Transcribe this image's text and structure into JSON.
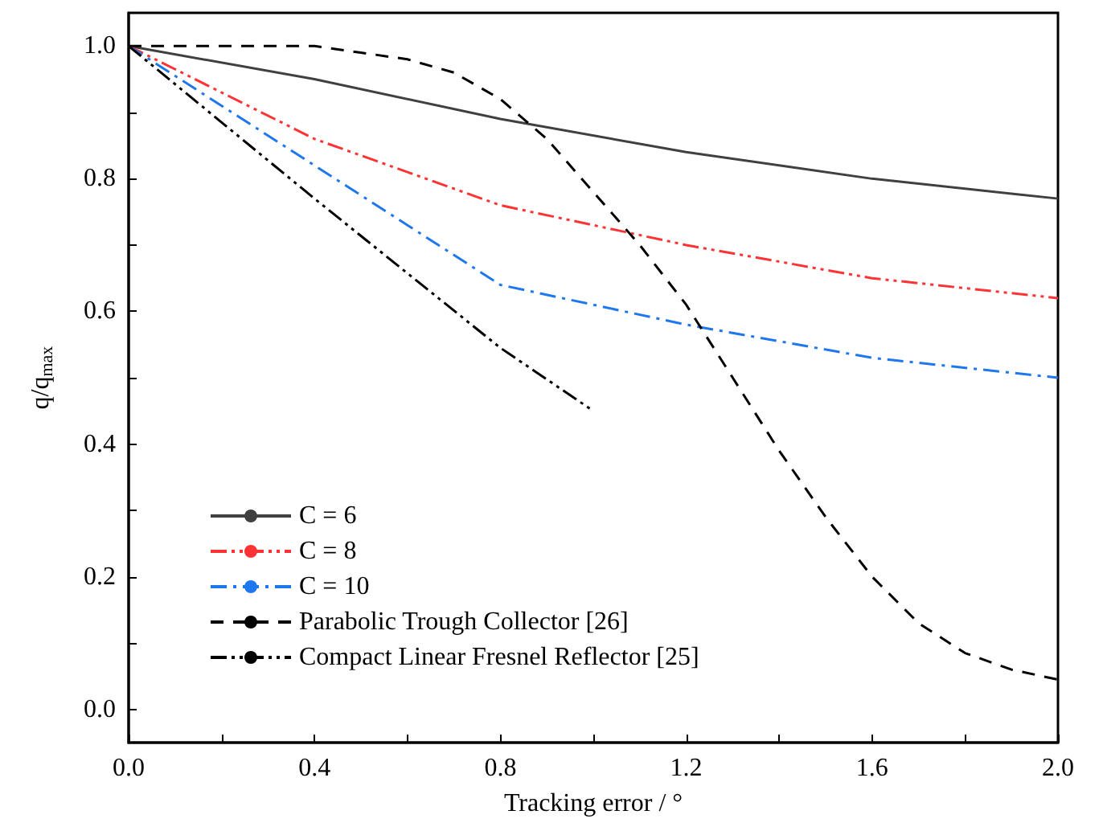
{
  "chart_data": {
    "type": "line",
    "xlabel": "Tracking error / °",
    "ylabel": "q/q$_{max}$",
    "xlim": [
      0,
      2.0
    ],
    "ylim": [
      -0.05,
      1.05
    ],
    "xticks": [
      {
        "value": 0,
        "label": "0.0"
      },
      {
        "value": 0.2,
        "label": null
      },
      {
        "value": 0.4,
        "label": "0.4"
      },
      {
        "value": 0.6,
        "label": null
      },
      {
        "value": 0.8,
        "label": "0.8"
      },
      {
        "value": 1.0,
        "label": null
      },
      {
        "value": 1.2,
        "label": "1.2"
      },
      {
        "value": 1.4,
        "label": null
      },
      {
        "value": 1.6,
        "label": "1.6"
      },
      {
        "value": 1.8,
        "label": null
      },
      {
        "value": 2.0,
        "label": "2.0"
      }
    ],
    "yticks": [
      {
        "value": 0,
        "label": "0.0"
      },
      {
        "value": 0.1,
        "label": null
      },
      {
        "value": 0.2,
        "label": "0.2"
      },
      {
        "value": 0.3,
        "label": null
      },
      {
        "value": 0.4,
        "label": "0.4"
      },
      {
        "value": 0.5,
        "label": null
      },
      {
        "value": 0.6,
        "label": "0.6"
      },
      {
        "value": 0.7,
        "label": null
      },
      {
        "value": 0.8,
        "label": "0.8"
      },
      {
        "value": 0.9,
        "label": null
      },
      {
        "value": 1.0,
        "label": "1.0"
      }
    ],
    "grid": false,
    "legend": "bottom left",
    "marker": "none",
    "series": [
      {
        "name": "C = 6",
        "color": "#404040",
        "line_style": "solid",
        "x": [
          0,
          0.4,
          0.8,
          1.2,
          1.6,
          2.0
        ],
        "values": [
          1.0,
          0.95,
          0.89,
          0.84,
          0.8,
          0.77
        ]
      },
      {
        "name": "C = 8",
        "color": "#ff3333",
        "line_style": "dashdotdot",
        "x": [
          0,
          0.4,
          0.8,
          1.2,
          1.6,
          2.0
        ],
        "values": [
          1.0,
          0.86,
          0.76,
          0.7,
          0.65,
          0.62
        ]
      },
      {
        "name": "C = 10",
        "color": "#1f77f0",
        "line_style": "dashdot",
        "x": [
          0,
          0.4,
          0.8,
          1.2,
          1.6,
          2.0
        ],
        "values": [
          1.0,
          0.82,
          0.64,
          0.58,
          0.53,
          0.5
        ]
      },
      {
        "name": "Parabolic Trough Collector [26]",
        "color": "#000000",
        "line_style": "dashed",
        "x": [
          0,
          0.2,
          0.4,
          0.5,
          0.6,
          0.7,
          0.8,
          0.9,
          1.0,
          1.1,
          1.2,
          1.3,
          1.4,
          1.5,
          1.6,
          1.7,
          1.8,
          1.9,
          2.0
        ],
        "values": [
          1.0,
          1.0,
          1.0,
          0.99,
          0.98,
          0.96,
          0.92,
          0.86,
          0.78,
          0.7,
          0.61,
          0.5,
          0.39,
          0.29,
          0.2,
          0.13,
          0.085,
          0.06,
          0.045
        ]
      },
      {
        "name": "Compact Linear Fresnel Reflector [25]",
        "color": "#000000",
        "line_style": "dashdotdot",
        "x": [
          0,
          0.4,
          0.8,
          1.0
        ],
        "values": [
          1.0,
          0.77,
          0.545,
          0.45
        ]
      }
    ]
  }
}
